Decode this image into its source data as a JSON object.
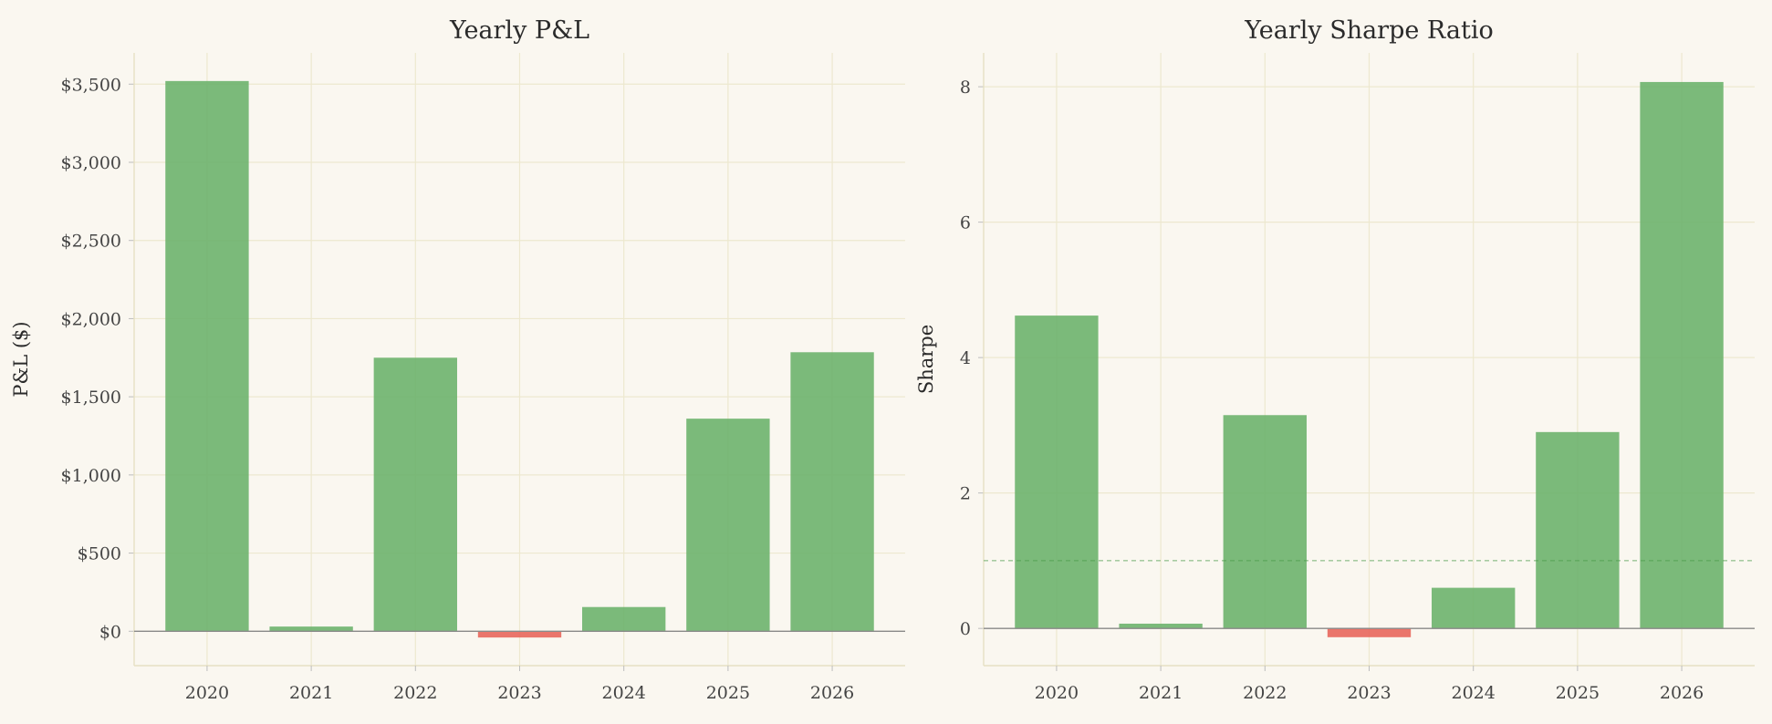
{
  "colors": {
    "positive": "#6db36d",
    "negative": "#e8665c",
    "background": "#faf7f0"
  },
  "chart_data": [
    {
      "type": "bar",
      "title": "Yearly P&L",
      "ylabel": "P&L ($)",
      "xlabel": "",
      "categories": [
        "2020",
        "2021",
        "2022",
        "2023",
        "2024",
        "2025",
        "2026"
      ],
      "values": [
        3520,
        30,
        1750,
        -40,
        155,
        1360,
        1785
      ],
      "ylim": [
        -220,
        3700
      ],
      "yticks": [
        0,
        500,
        1000,
        1500,
        2000,
        2500,
        3000,
        3500
      ],
      "ytick_labels": [
        "$0",
        "$500",
        "$1,000",
        "$1,500",
        "$2,000",
        "$2,500",
        "$3,000",
        "$3,500"
      ],
      "grid": true,
      "reference_line": null
    },
    {
      "type": "bar",
      "title": "Yearly Sharpe Ratio",
      "ylabel": "Sharpe",
      "xlabel": "",
      "categories": [
        "2020",
        "2021",
        "2022",
        "2023",
        "2024",
        "2025",
        "2026"
      ],
      "values": [
        4.62,
        0.07,
        3.15,
        -0.13,
        0.6,
        2.9,
        8.07
      ],
      "ylim": [
        -0.55,
        8.5
      ],
      "yticks": [
        0,
        2,
        4,
        6,
        8
      ],
      "ytick_labels": [
        "0",
        "2",
        "4",
        "6",
        "8"
      ],
      "grid": true,
      "reference_line": 1
    }
  ]
}
